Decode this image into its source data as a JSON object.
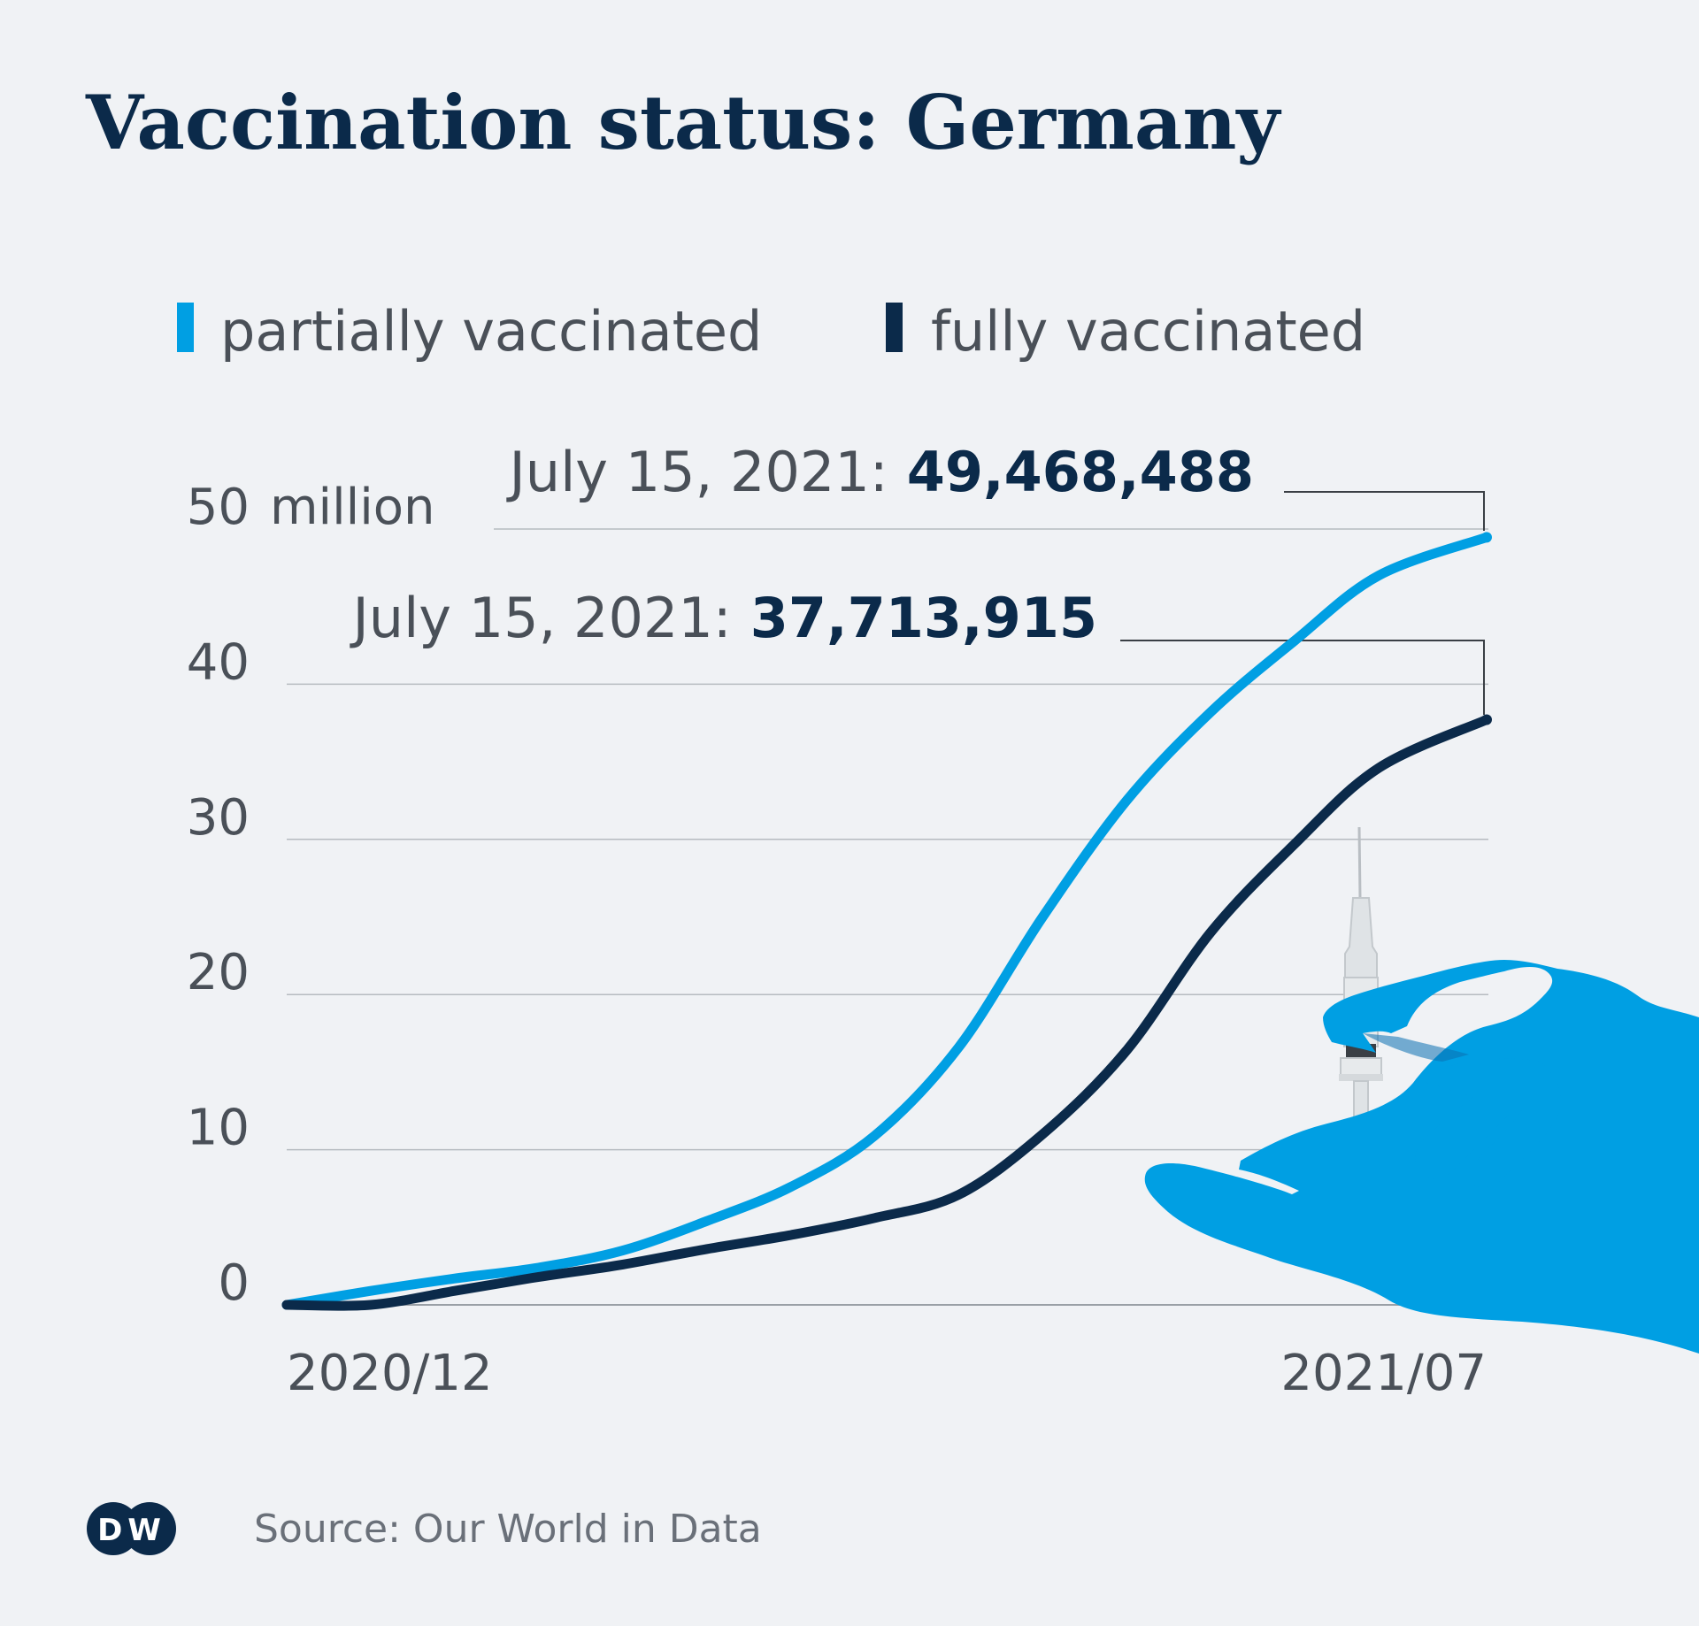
{
  "title": "Vaccination status: Germany",
  "legend": [
    {
      "label": "partially vaccinated",
      "color": "#009fe3"
    },
    {
      "label": "fully vaccinated",
      "color": "#0b2a4a"
    }
  ],
  "source": "Source: Our World in Data",
  "logo": "DW",
  "illustration": "gloved-hand-syringe-icon",
  "chart_data": {
    "type": "line",
    "x_tick_labels": [
      "2020/12",
      "2021/07"
    ],
    "y_tick_labels": [
      "0",
      "10",
      "20",
      "30",
      "40",
      "50"
    ],
    "y_unit": "million",
    "ylim": [
      0,
      50
    ],
    "grid": true,
    "legend_position": "top-left",
    "x": [
      "2020-12-27",
      "2021-01-10",
      "2021-01-24",
      "2021-02-07",
      "2021-02-21",
      "2021-03-07",
      "2021-03-21",
      "2021-04-04",
      "2021-04-18",
      "2021-05-02",
      "2021-05-16",
      "2021-05-30",
      "2021-06-13",
      "2021-06-27",
      "2021-07-15"
    ],
    "series": [
      {
        "name": "partially vaccinated",
        "color": "#009fe3",
        "values": [
          0,
          0.9,
          1.7,
          2.4,
          3.5,
          5.4,
          7.6,
          10.9,
          16.6,
          25.0,
          32.5,
          38.2,
          42.8,
          47.0,
          49.468488
        ]
      },
      {
        "name": "fully vaccinated",
        "color": "#0b2a4a",
        "values": [
          0,
          0,
          0.9,
          1.8,
          2.6,
          3.6,
          4.5,
          5.6,
          7.1,
          11.0,
          16.4,
          24.0,
          29.7,
          34.6,
          37.713915
        ]
      }
    ],
    "annotations": [
      {
        "prefix": "July 15, 2021:",
        "value": "49,468,488"
      },
      {
        "prefix": "July 15, 2021:",
        "value": "37,713,915"
      }
    ]
  }
}
